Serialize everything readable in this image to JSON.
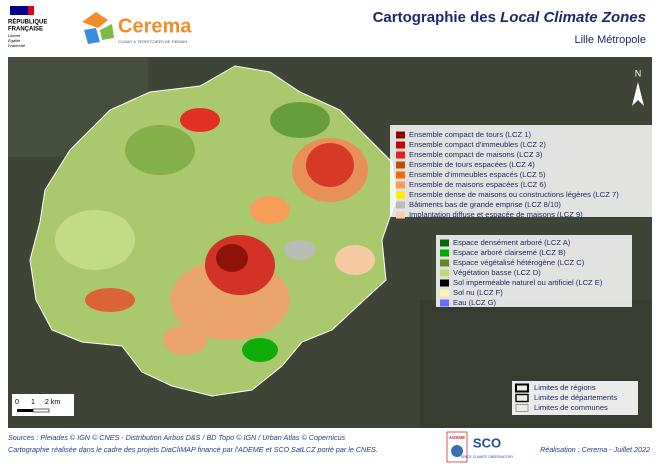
{
  "header": {
    "republique": [
      "RÉPUBLIQUE",
      "FRANÇAISE"
    ],
    "motto": [
      "Liberté",
      "Égalité",
      "Fraternité"
    ],
    "brand": "Cerema",
    "brand_tagline": "CLIMAT & TERRITOIRES DE DEMAIN",
    "title_prefix": "Cartographie des ",
    "title_emphasis": "Local Climate Zones",
    "subtitle": "Lille Métropole"
  },
  "map": {
    "north": "N",
    "scale": [
      "0",
      "1",
      "2 km"
    ],
    "legend_built": [
      {
        "label": "Ensemble compact de tours (LCZ 1)",
        "color": "#8b0000"
      },
      {
        "label": "Ensemble compact d'immeubles (LCZ 2)",
        "color": "#cc0000"
      },
      {
        "label": "Ensemble compact de maisons (LCZ 3)",
        "color": "#e8201c"
      },
      {
        "label": "Ensemble de tours espacées (LCZ 4)",
        "color": "#bf4d00"
      },
      {
        "label": "Ensemble d'immeubles espacés (LCZ 5)",
        "color": "#ff6600"
      },
      {
        "label": "Ensemble de maisons espacées (LCZ 6)",
        "color": "#ff9955"
      },
      {
        "label": "Ensemble dense de maisons ou constructions légères (LCZ 7)",
        "color": "#faee05"
      },
      {
        "label": "Bâtiments bas de grande emprise (LCZ 8/10)",
        "color": "#bcbcbc"
      },
      {
        "label": "Implantation diffuse et espacée de maisons (LCZ 9)",
        "color": "#ffccaa"
      }
    ],
    "legend_land": [
      {
        "label": "Espace densément arboré (LCZ A)",
        "color": "#006a00"
      },
      {
        "label": "Espace arboré clairsemé (LCZ B)",
        "color": "#00aa00"
      },
      {
        "label": "Espace végétalisé hétérogène (LCZ C)",
        "color": "#648525"
      },
      {
        "label": "Végétation basse (LCZ D)",
        "color": "#b9db79"
      },
      {
        "label": "Sol imperméable naturel ou artificiel (LCZ E)",
        "color": "#000000"
      },
      {
        "label": "Sol nu (LCZ F)",
        "color": "#fbf7ae"
      },
      {
        "label": "Eau (LCZ G)",
        "color": "#6a6aff"
      }
    ],
    "legend_limits": [
      "Limites de régions",
      "Limites de départements",
      "Limites de communes"
    ]
  },
  "footer": {
    "sources": "Sources : Pleiades © IGN © CNES - Distribution Airbus D&S / BD Topo © IGN / Urban Atlas © Copernicus",
    "credits": "Cartographie réalisée dans le cadre des projets DiaCliMAP financé par l'ADEME et SCO SatLCZ porté par le CNES.",
    "ademe": "ADEME",
    "sco": "SCO",
    "sco_tagline": "SPACE CLIMATE OBSERVATORY",
    "realisation": "Réalisation : Cerema - Juillet 2022"
  }
}
